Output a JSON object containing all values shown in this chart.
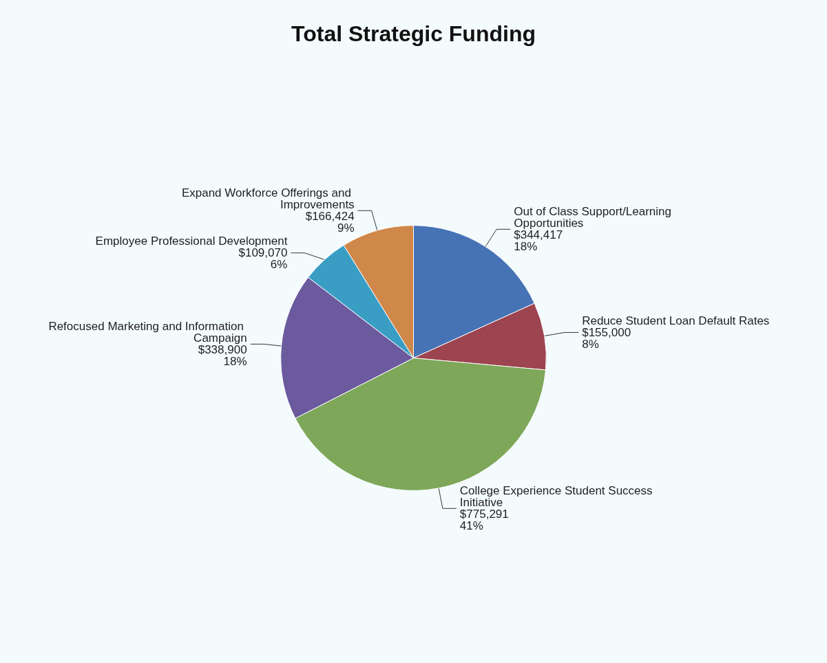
{
  "chart_data": {
    "type": "pie",
    "title": "Total Strategic Funding",
    "categories": [
      "Out of Class Support/Learning Opportunities",
      "Reduce Student Loan Default Rates",
      "College Experience Student Success Initiative",
      "Refocused Marketing and Information Campaign",
      "Employee Professional Development",
      "Expand Workforce Offerings and Improvements"
    ],
    "values": [
      344417,
      155000,
      775291,
      338900,
      109070,
      166424
    ],
    "value_labels": [
      "$344,417\n18%",
      "$155,000\n8%",
      "$775,291\n41%",
      "$338,900\n18%",
      "$109,070\n6%",
      "$166,424\n9%"
    ],
    "colors": [
      "#4573b5",
      "#9c4450",
      "#7ea75a",
      "#6b5a9e",
      "#3a9ec4",
      "#d0874a"
    ],
    "legend": false
  }
}
